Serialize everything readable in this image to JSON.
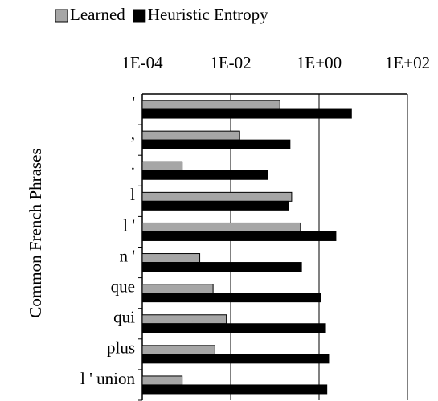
{
  "chart_data": {
    "type": "hbar",
    "y_label": "Common French Phrases",
    "categories": [
      "'",
      ",",
      ".",
      "l",
      "l '",
      "n '",
      "que",
      "qui",
      "plus",
      "l ' union"
    ],
    "series": [
      {
        "name": "Learned",
        "color": "#a6a6a6",
        "values": [
          0.13,
          0.016,
          0.0008,
          0.24,
          0.38,
          0.002,
          0.004,
          0.008,
          0.0044,
          0.0008
        ]
      },
      {
        "name": "Heuristic Entropy",
        "color": "#000000",
        "values": [
          5.4,
          0.22,
          0.069,
          0.2,
          2.4,
          0.4,
          1.1,
          1.4,
          1.65,
          1.5
        ]
      }
    ],
    "xscale": "log",
    "xlim": [
      0.0001,
      100
    ],
    "xticks": [
      {
        "value": 0.0001,
        "label": "1E-04"
      },
      {
        "value": 0.01,
        "label": "1E-02"
      },
      {
        "value": 1,
        "label": "1E+00"
      },
      {
        "value": 100,
        "label": "1E+02"
      }
    ],
    "grid": true,
    "legend": "top"
  }
}
